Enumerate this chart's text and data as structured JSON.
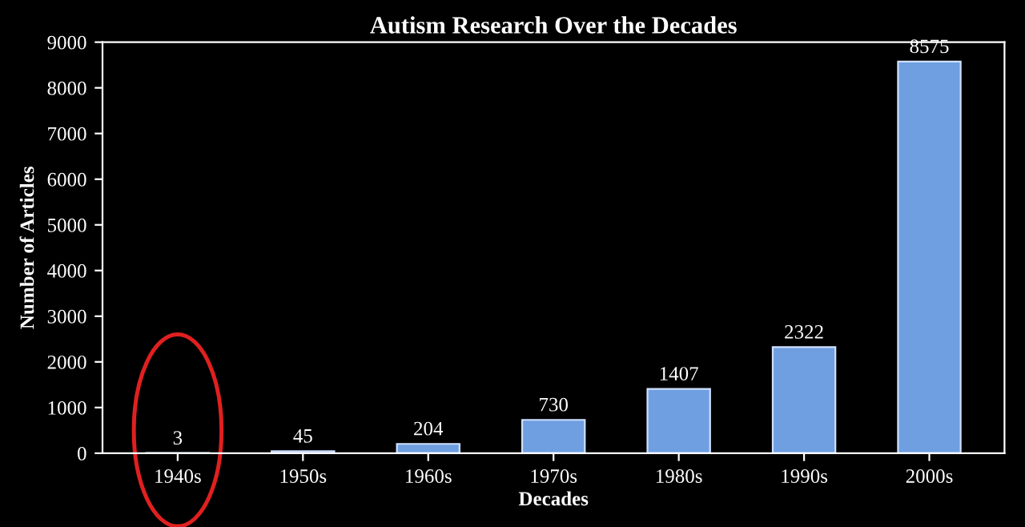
{
  "chart_data": {
    "type": "bar",
    "title": "Autism Research Over the Decades",
    "xlabel": "Decades",
    "ylabel": "Number of Articles",
    "categories": [
      "1940s",
      "1950s",
      "1960s",
      "1970s",
      "1980s",
      "1990s",
      "2000s"
    ],
    "values": [
      3,
      45,
      204,
      730,
      1407,
      2322,
      8575
    ],
    "color": "#6f9fe0",
    "ylim": [
      0,
      9000
    ],
    "yticks": [
      0,
      1000,
      2000,
      3000,
      4000,
      5000,
      6000,
      7000,
      8000,
      9000
    ],
    "grid": false,
    "data_labels": true
  }
}
